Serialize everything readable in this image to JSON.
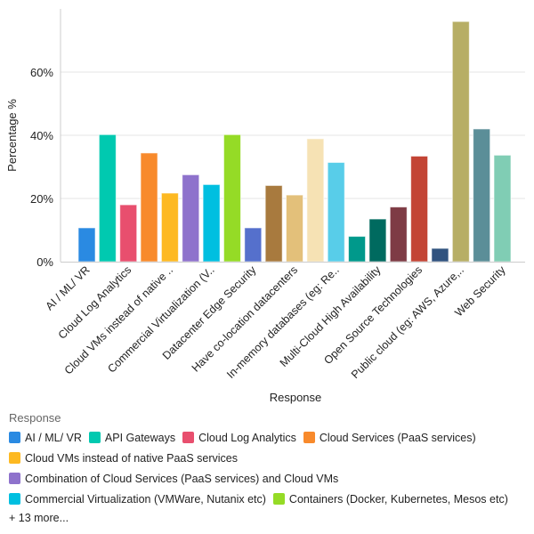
{
  "chart_data": {
    "type": "bar",
    "xlabel": "Response",
    "ylabel": "Percentage %",
    "ylim": [
      0,
      80
    ],
    "yticks": [
      0,
      20,
      40,
      60
    ],
    "ytick_labels": [
      "0%",
      "20%",
      "40%",
      "60%"
    ],
    "grid": true,
    "x_tick_labels": [
      {
        "index": 0,
        "label": "AI / ML/ VR"
      },
      {
        "index": 2,
        "label": "Cloud Log Analytics"
      },
      {
        "index": 4,
        "label": "Cloud VMs instead of native .."
      },
      {
        "index": 6,
        "label": "Commercial Virtualization (V.."
      },
      {
        "index": 8,
        "label": "Datacenter Edge Security"
      },
      {
        "index": 10,
        "label": "Have co-location datacenters"
      },
      {
        "index": 12,
        "label": "In-memory databases (eg: Re.."
      },
      {
        "index": 14,
        "label": "Multi-Cloud High Availability"
      },
      {
        "index": 16,
        "label": "Open Source Technologies"
      },
      {
        "index": 18,
        "label": "Public cloud (eg: AWS, Azure,.."
      },
      {
        "index": 20,
        "label": "Web Security"
      }
    ],
    "values": [
      10.7,
      40.2,
      18.0,
      34.4,
      21.7,
      27.5,
      24.4,
      40.2,
      10.7,
      24.1,
      21.1,
      38.9,
      31.4,
      8.0,
      13.5,
      17.3,
      33.4,
      4.2,
      76.0,
      42.0,
      33.7
    ],
    "colors": [
      "#2a8ae2",
      "#00c9b0",
      "#e84f6e",
      "#f88a2c",
      "#fdb922",
      "#8e72cc",
      "#00bfe0",
      "#95db26",
      "#5570cc",
      "#a87a3e",
      "#e3c07a",
      "#f6e2b4",
      "#58cde9",
      "#00998b",
      "#006a5f",
      "#7e3b45",
      "#c34435",
      "#30527f",
      "#b7ae65",
      "#5b8e98",
      "#80cdb4"
    ]
  },
  "legend": {
    "title": "Response",
    "placement": "bottom",
    "items": [
      {
        "label": "AI / ML/ VR",
        "color": "#2a8ae2"
      },
      {
        "label": "API Gateways",
        "color": "#00c9b0"
      },
      {
        "label": "Cloud Log Analytics",
        "color": "#e84f6e"
      },
      {
        "label": "Cloud Services (PaaS services)",
        "color": "#f88a2c"
      },
      {
        "label": "Cloud VMs instead of native PaaS services",
        "color": "#fdb922"
      },
      {
        "label": "Combination of Cloud Services (PaaS services) and Cloud VMs",
        "color": "#8e72cc"
      },
      {
        "label": "Commercial Virtualization (VMWare, Nutanix etc)",
        "color": "#00bfe0"
      },
      {
        "label": "Containers (Docker, Kubernetes, Mesos etc)",
        "color": "#95db26"
      }
    ],
    "more_label": "+ 13 more..."
  }
}
